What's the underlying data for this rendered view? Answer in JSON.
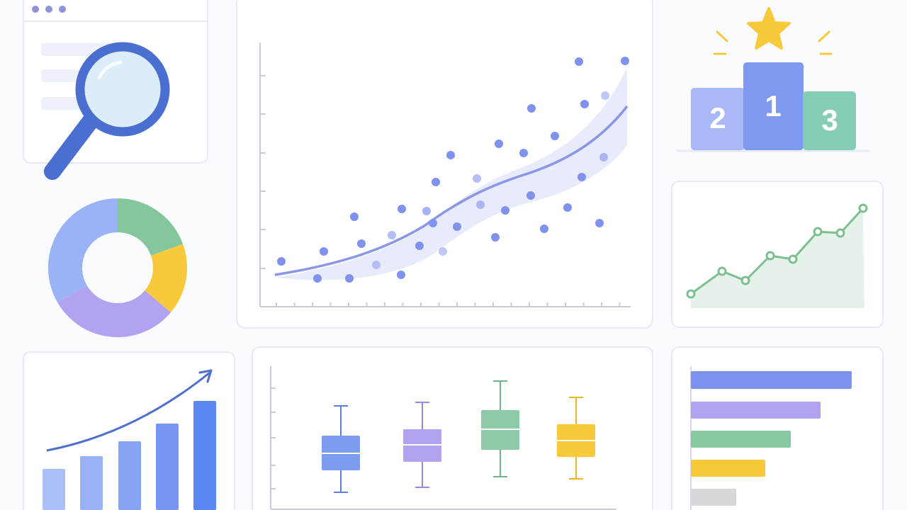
{
  "podium": {
    "places": [
      "2",
      "1",
      "3"
    ]
  }
}
